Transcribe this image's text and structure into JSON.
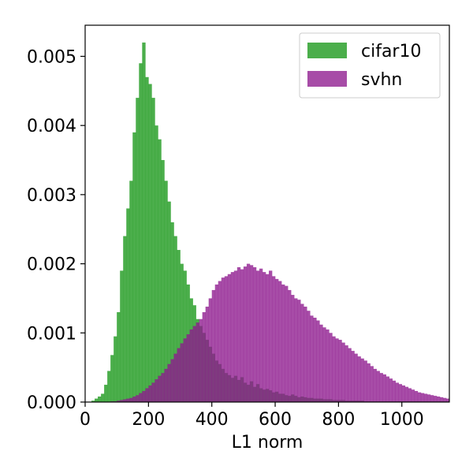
{
  "chart_data": {
    "type": "histogram",
    "title": "",
    "xlabel": "L1 norm",
    "ylabel": "",
    "xlim": [
      0,
      1150
    ],
    "ylim": [
      0,
      0.00545
    ],
    "bin_width": 10,
    "x_ticks": [
      0,
      200,
      400,
      600,
      800,
      1000
    ],
    "x_tick_labels": [
      "0",
      "200",
      "400",
      "600",
      "800",
      "1000"
    ],
    "y_ticks": [
      0,
      0.001,
      0.002,
      0.003,
      0.004,
      0.005
    ],
    "y_tick_labels": [
      "0.000",
      "0.001",
      "0.002",
      "0.003",
      "0.004",
      "0.005"
    ],
    "legend_position": "top-right",
    "grid": false,
    "series": [
      {
        "name": "cifar10",
        "color": "#2ca02c",
        "opacity": 0.85,
        "x_start": 20,
        "values": [
          2e-05,
          5e-05,
          8e-05,
          0.00012,
          0.00025,
          0.00045,
          0.00068,
          0.00095,
          0.0013,
          0.0019,
          0.0024,
          0.0028,
          0.0032,
          0.0039,
          0.0044,
          0.0049,
          0.0052,
          0.0047,
          0.0046,
          0.0044,
          0.004,
          0.0038,
          0.0035,
          0.0032,
          0.0029,
          0.0026,
          0.0024,
          0.0022,
          0.002,
          0.0019,
          0.0017,
          0.0015,
          0.0014,
          0.0012,
          0.0011,
          0.001,
          0.0009,
          0.0008,
          0.0007,
          0.0006,
          0.00055,
          0.00048,
          0.00042,
          0.00039,
          0.00035,
          0.00038,
          0.00032,
          0.00036,
          0.00028,
          0.00025,
          0.0003,
          0.00022,
          0.00026,
          0.0002,
          0.00018,
          0.00019,
          0.00017,
          0.00014,
          0.00015,
          0.00012,
          0.00012,
          0.0001,
          9e-05,
          0.00011,
          9e-05,
          7e-05,
          8e-05,
          7e-05,
          6e-05,
          6e-05,
          5e-05,
          5e-05,
          5e-05,
          4e-05,
          4e-05,
          4e-05,
          3e-05,
          3e-05,
          3e-05,
          3e-05,
          2e-05,
          2e-05,
          2e-05,
          2e-05,
          2e-05,
          2e-05,
          1e-05,
          1e-05,
          1e-05,
          1e-05,
          1e-05,
          1e-05,
          1e-05,
          1e-05,
          1e-05,
          1e-05,
          1e-05,
          1e-05,
          1e-05,
          1e-05,
          1e-05,
          1e-05,
          1e-05,
          1e-05,
          1e-05,
          1e-05,
          1e-05,
          1e-05,
          1e-05,
          1e-05,
          1e-05,
          1e-05,
          1e-05
        ]
      },
      {
        "name": "svhn",
        "color": "#8e1a8e",
        "opacity": 0.78,
        "x_start": 20,
        "values": [
          0,
          0,
          0,
          0,
          0,
          0,
          1e-05,
          1e-05,
          2e-05,
          3e-05,
          4e-05,
          5e-05,
          6e-05,
          8e-05,
          0.0001,
          0.00013,
          0.00016,
          0.0002,
          0.00024,
          0.00028,
          0.00033,
          0.00038,
          0.00042,
          0.00048,
          0.00055,
          0.00062,
          0.0007,
          0.00078,
          0.00085,
          0.00092,
          0.00098,
          0.00105,
          0.0011,
          0.00115,
          0.0012,
          0.0013,
          0.00138,
          0.0015,
          0.00162,
          0.0017,
          0.00175,
          0.0018,
          0.00182,
          0.00185,
          0.00188,
          0.0019,
          0.00195,
          0.00192,
          0.00196,
          0.002,
          0.00198,
          0.00195,
          0.0019,
          0.00193,
          0.00188,
          0.00185,
          0.0019,
          0.00182,
          0.00178,
          0.00175,
          0.0017,
          0.00168,
          0.00162,
          0.00155,
          0.0015,
          0.00148,
          0.00142,
          0.00138,
          0.00132,
          0.00125,
          0.00122,
          0.00118,
          0.00112,
          0.00108,
          0.00105,
          0.001,
          0.00095,
          0.00092,
          0.0009,
          0.00086,
          0.00082,
          0.00078,
          0.00074,
          0.0007,
          0.00066,
          0.00063,
          0.0006,
          0.00056,
          0.00052,
          0.00048,
          0.00045,
          0.00042,
          0.0004,
          0.00037,
          0.00034,
          0.00031,
          0.00028,
          0.00026,
          0.00024,
          0.00022,
          0.0002,
          0.00018,
          0.00016,
          0.00014,
          0.00013,
          0.00012,
          0.00011,
          0.0001,
          9e-05,
          8e-05,
          7e-05,
          6e-05,
          5e-05
        ]
      }
    ]
  }
}
